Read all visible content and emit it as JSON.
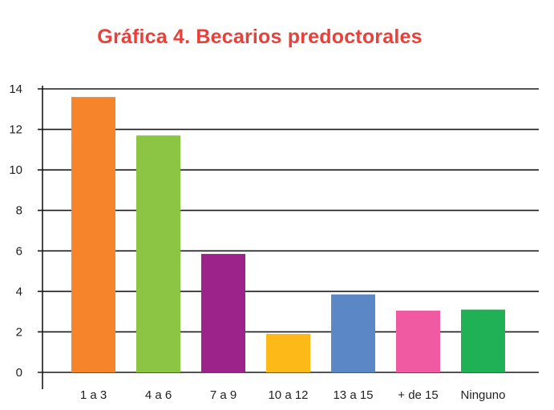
{
  "chart_data": {
    "type": "bar",
    "title": "Gráfica 4. Becarios predoctorales",
    "categories": [
      "1 a 3",
      "4 a 6",
      "7 a 9",
      "10 a 12",
      "13 a 15",
      "+ de 15",
      "Ninguno"
    ],
    "values": [
      13.6,
      11.7,
      5.85,
      1.9,
      3.85,
      3.05,
      3.1
    ],
    "ylim": [
      0,
      14
    ],
    "yticks": [
      "0",
      "2",
      "4",
      "6",
      "8",
      "10",
      "12",
      "14"
    ],
    "grid": true,
    "legend": "none"
  },
  "colors": {
    "title": "#e8403a",
    "bars": [
      "#f5842a",
      "#8cc543",
      "#9c2389",
      "#fcb917",
      "#5b87c6",
      "#ef5aa2",
      "#20b157"
    ],
    "grid": "#1a1a1a"
  }
}
